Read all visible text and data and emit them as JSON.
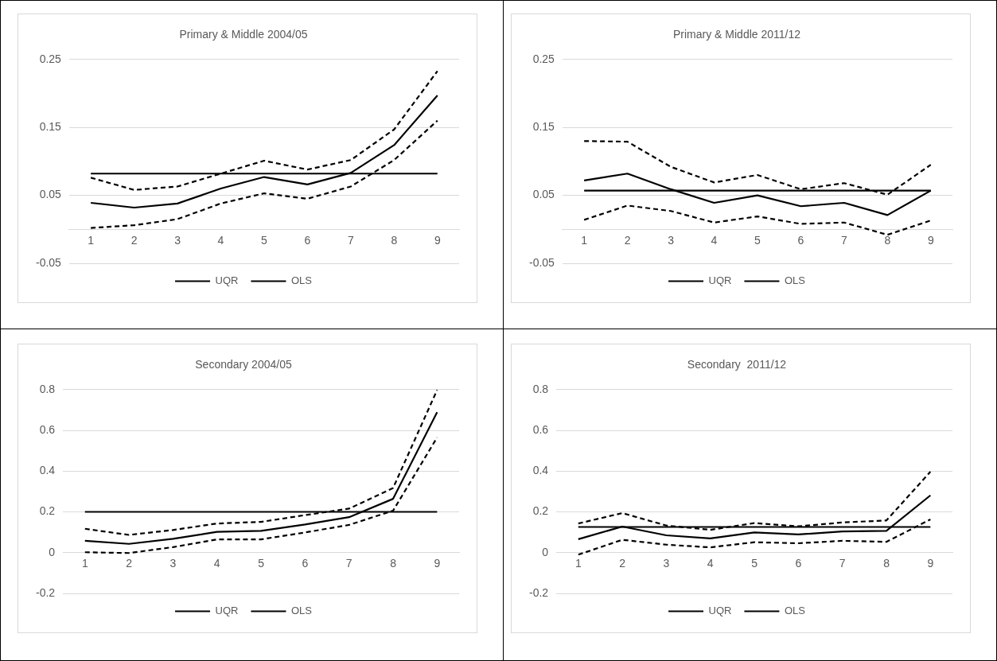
{
  "chart_data": [
    {
      "type": "line",
      "title": "Primary & Middle 2004/05",
      "categories": [
        "1",
        "2",
        "3",
        "4",
        "5",
        "6",
        "7",
        "8",
        "9"
      ],
      "marker": "none",
      "grid": "y",
      "legend": "bottom",
      "ylim": [
        -0.05,
        0.25
      ],
      "yticks": [
        -0.05,
        {
          "value": 0,
          "label": null
        },
        0.05,
        0.15,
        0.25
      ],
      "series": [
        {
          "name": "UQR",
          "color": "#000000",
          "line_style": "solid",
          "values": [
            0.039,
            0.032,
            0.038,
            0.06,
            0.077,
            0.066,
            0.083,
            0.124,
            0.197
          ]
        },
        {
          "name": "OLS",
          "color": "#000000",
          "line_style": "solid",
          "values": [
            0.082,
            0.082,
            0.082,
            0.082,
            0.082,
            0.082,
            0.082,
            0.082,
            0.082
          ]
        },
        {
          "color": "#000000",
          "line_style": "dashed",
          "values": [
            0.076,
            0.058,
            0.063,
            0.082,
            0.101,
            0.088,
            0.102,
            0.147,
            0.233
          ]
        },
        {
          "color": "#000000",
          "line_style": "dashed",
          "values": [
            0.002,
            0.006,
            0.015,
            0.038,
            0.053,
            0.045,
            0.063,
            0.102,
            0.16
          ]
        }
      ]
    },
    {
      "type": "line",
      "title": "Primary & Middle 2011/12",
      "categories": [
        "1",
        "2",
        "3",
        "4",
        "5",
        "6",
        "7",
        "8",
        "9"
      ],
      "marker": "none",
      "grid": "y",
      "legend": "bottom",
      "ylim": [
        -0.05,
        0.25
      ],
      "yticks": [
        -0.05,
        {
          "value": 0,
          "label": null
        },
        0.05,
        0.15,
        0.25
      ],
      "series": [
        {
          "name": "UQR",
          "color": "#000000",
          "line_style": "solid",
          "values": [
            0.072,
            0.082,
            0.059,
            0.039,
            0.05,
            0.034,
            0.039,
            0.021,
            0.057
          ]
        },
        {
          "name": "OLS",
          "color": "#000000",
          "line_style": "solid",
          "values": [
            0.057,
            0.057,
            0.057,
            0.057,
            0.057,
            0.057,
            0.057,
            0.057,
            0.057
          ]
        },
        {
          "color": "#000000",
          "line_style": "dashed",
          "values": [
            0.13,
            0.129,
            0.092,
            0.069,
            0.08,
            0.059,
            0.068,
            0.051,
            0.095
          ]
        },
        {
          "color": "#000000",
          "line_style": "dashed",
          "values": [
            0.014,
            0.035,
            0.027,
            0.01,
            0.019,
            0.008,
            0.01,
            -0.008,
            0.013
          ]
        }
      ]
    },
    {
      "type": "line",
      "title": "Secondary 2004/05",
      "categories": [
        "1",
        "2",
        "3",
        "4",
        "5",
        "6",
        "7",
        "8",
        "9"
      ],
      "marker": "none",
      "grid": "y",
      "legend": "bottom",
      "ylim": [
        -0.2,
        0.8
      ],
      "yticks": [
        -0.2,
        0,
        0.2,
        0.4,
        0.6,
        0.8
      ],
      "series": [
        {
          "name": "UQR",
          "color": "#000000",
          "line_style": "solid",
          "values": [
            0.058,
            0.043,
            0.068,
            0.102,
            0.107,
            0.138,
            0.174,
            0.264,
            0.689
          ]
        },
        {
          "name": "OLS",
          "color": "#000000",
          "line_style": "solid",
          "values": [
            0.2,
            0.2,
            0.2,
            0.2,
            0.2,
            0.2,
            0.2,
            0.2,
            0.2
          ]
        },
        {
          "color": "#000000",
          "line_style": "dashed",
          "values": [
            0.117,
            0.087,
            0.111,
            0.143,
            0.151,
            0.184,
            0.216,
            0.317,
            0.798
          ]
        },
        {
          "color": "#000000",
          "line_style": "dashed",
          "values": [
            0.002,
            -0.002,
            0.027,
            0.065,
            0.065,
            0.099,
            0.136,
            0.206,
            0.565
          ]
        }
      ]
    },
    {
      "type": "line",
      "title": "Secondary  2011/12",
      "categories": [
        "1",
        "2",
        "3",
        "4",
        "5",
        "6",
        "7",
        "8",
        "9"
      ],
      "marker": "none",
      "grid": "y",
      "legend": "bottom",
      "ylim": [
        -0.2,
        0.8
      ],
      "yticks": [
        -0.2,
        0,
        0.2,
        0.4,
        0.6,
        0.8
      ],
      "series": [
        {
          "name": "UQR",
          "color": "#000000",
          "line_style": "solid",
          "values": [
            0.066,
            0.128,
            0.085,
            0.07,
            0.099,
            0.089,
            0.104,
            0.107,
            0.281
          ]
        },
        {
          "name": "OLS",
          "color": "#000000",
          "line_style": "solid",
          "values": [
            0.126,
            0.126,
            0.126,
            0.126,
            0.126,
            0.126,
            0.126,
            0.126,
            0.126
          ]
        },
        {
          "color": "#000000",
          "line_style": "dashed",
          "values": [
            0.143,
            0.194,
            0.133,
            0.112,
            0.145,
            0.129,
            0.148,
            0.158,
            0.397
          ]
        },
        {
          "color": "#000000",
          "line_style": "dashed",
          "values": [
            -0.01,
            0.063,
            0.039,
            0.026,
            0.051,
            0.046,
            0.058,
            0.053,
            0.163
          ]
        }
      ]
    }
  ]
}
